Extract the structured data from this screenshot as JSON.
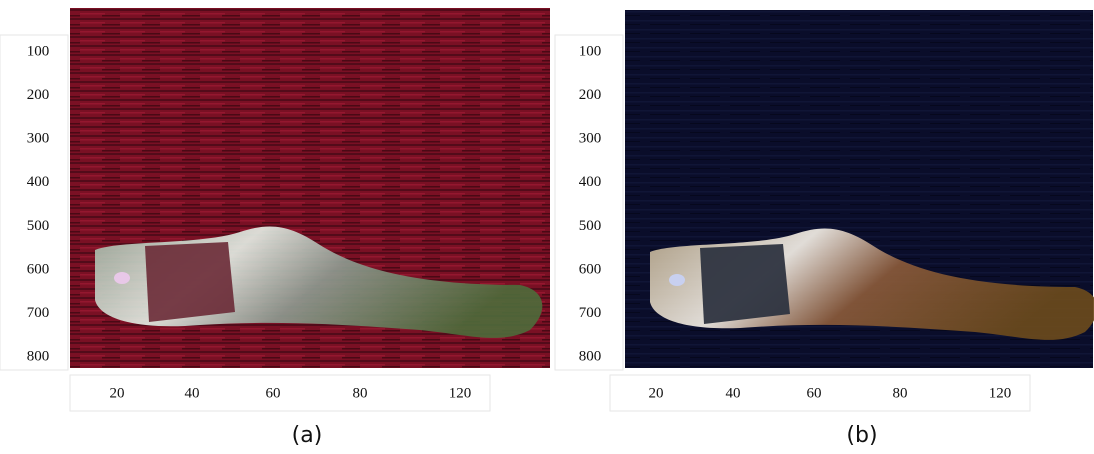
{
  "panels": [
    {
      "caption": "(a)",
      "yticks": [
        100,
        200,
        300,
        400,
        500,
        600,
        700,
        800
      ],
      "xticks": [
        20,
        40,
        60,
        80,
        120
      ]
    },
    {
      "caption": "(b)",
      "yticks": [
        100,
        200,
        300,
        400,
        500,
        600,
        700,
        800
      ],
      "xticks": [
        20,
        40,
        60,
        80,
        120
      ]
    }
  ]
}
